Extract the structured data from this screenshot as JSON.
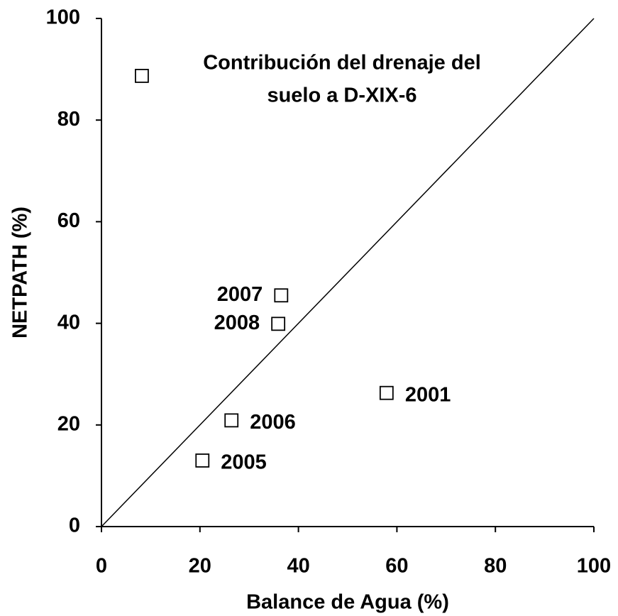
{
  "chart_data": {
    "type": "scatter",
    "title": [
      "Contribución del drenaje del",
      "suelo a D-XIX-6"
    ],
    "x_label": "Balance de Agua (%)",
    "y_label": "NETPATH (%)",
    "x": [
      8.2,
      36.5,
      35.9,
      57.9,
      26.4,
      20.5
    ],
    "values": [
      88.7,
      45.5,
      39.9,
      26.3,
      20.9,
      13.0
    ],
    "labels": [
      null,
      "2007",
      "2008",
      "2001",
      "2006",
      "2005"
    ],
    "xlim": [
      0,
      100
    ],
    "ylim": [
      0,
      100
    ],
    "xticks": [
      0,
      20,
      40,
      60,
      80,
      100
    ],
    "yticks": [
      0,
      20,
      40,
      60,
      80,
      100
    ],
    "grid": false,
    "color": "#000000"
  }
}
